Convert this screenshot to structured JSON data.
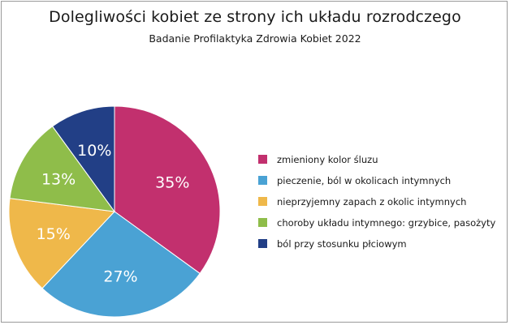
{
  "chart_data": {
    "type": "pie",
    "title": "Dolegliwości kobiet ze strony ich układu rozrodczego",
    "subtitle": "Badanie Profilaktyka Zdrowia Kobiet 2022",
    "legend_position": "right",
    "slices": [
      {
        "label": "zmieniony kolor śluzu",
        "value": 35,
        "display": "35%",
        "color": "#c2306e"
      },
      {
        "label": "pieczenie, ból w okolicach intymnych",
        "value": 27,
        "display": "27%",
        "color": "#4aa2d4"
      },
      {
        "label": "nieprzyjemny zapach z okolic intymnych",
        "value": 15,
        "display": "15%",
        "color": "#efb84a"
      },
      {
        "label": "choroby układu intymnego: grzybice, pasożyty",
        "value": 13,
        "display": "13%",
        "color": "#8fbd4a"
      },
      {
        "label": "ból przy stosunku płciowym",
        "value": 10,
        "display": "10%",
        "color": "#223f86"
      }
    ]
  }
}
